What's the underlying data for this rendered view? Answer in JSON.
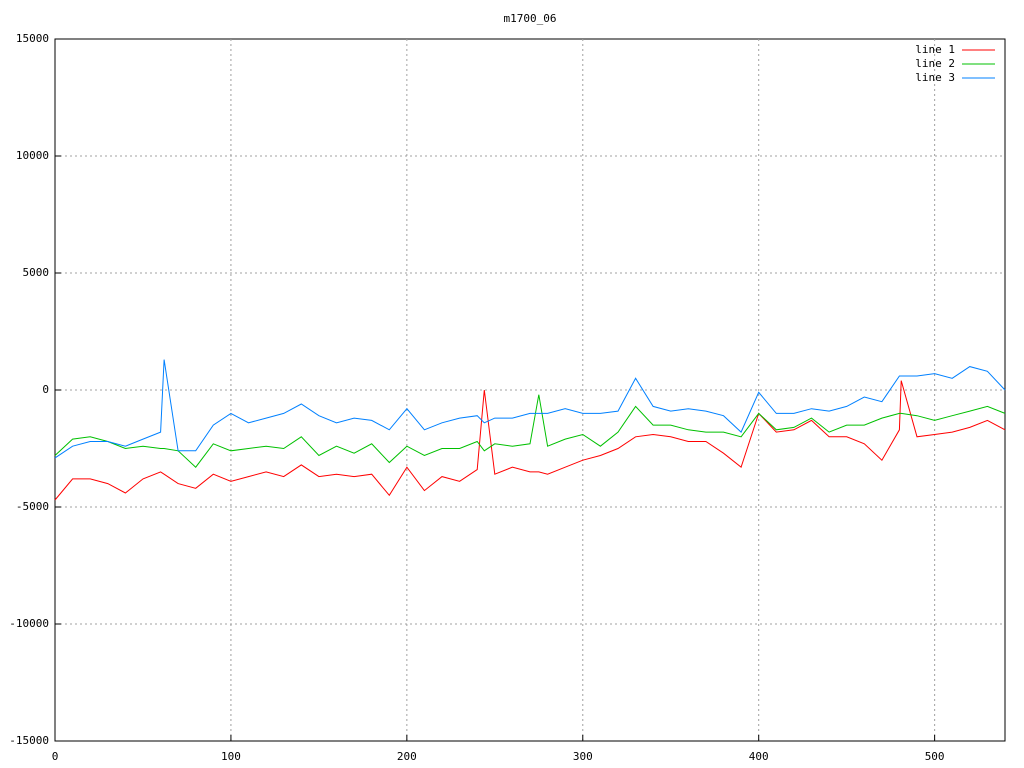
{
  "chart_data": {
    "type": "line",
    "title": "m1700_06",
    "x": [
      0,
      10,
      20,
      30,
      40,
      50,
      60,
      62,
      70,
      80,
      90,
      100,
      110,
      120,
      130,
      140,
      150,
      160,
      170,
      180,
      190,
      200,
      210,
      220,
      230,
      240,
      244,
      250,
      260,
      270,
      275,
      280,
      290,
      300,
      310,
      320,
      330,
      340,
      350,
      360,
      370,
      380,
      390,
      400,
      410,
      420,
      430,
      440,
      450,
      460,
      470,
      480,
      481,
      490,
      500,
      510,
      520,
      530,
      540
    ],
    "series": [
      {
        "name": "line 1",
        "color": "#ff0000",
        "values": [
          -4700,
          -3800,
          -3800,
          -4000,
          -4400,
          -3800,
          -3500,
          -3600,
          -4000,
          -4200,
          -3600,
          -3900,
          -3700,
          -3500,
          -3700,
          -3200,
          -3700,
          -3600,
          -3700,
          -3600,
          -4500,
          -3300,
          -4300,
          -3700,
          -3900,
          -3400,
          0,
          -3600,
          -3300,
          -3500,
          -3500,
          -3600,
          -3300,
          -3000,
          -2800,
          -2500,
          -2000,
          -1900,
          -2000,
          -2200,
          -2200,
          -2700,
          -3300,
          -1000,
          -1800,
          -1700,
          -1300,
          -2000,
          -2000,
          -2300,
          -3000,
          -1700,
          400,
          -2000,
          -1900,
          -1800,
          -1600,
          -1300,
          -1700
        ]
      },
      {
        "name": "line 2",
        "color": "#00c000",
        "values": [
          -2800,
          -2100,
          -2000,
          -2200,
          -2500,
          -2400,
          -2500,
          -2500,
          -2600,
          -3300,
          -2300,
          -2600,
          -2500,
          -2400,
          -2500,
          -2000,
          -2800,
          -2400,
          -2700,
          -2300,
          -3100,
          -2400,
          -2800,
          -2500,
          -2500,
          -2200,
          -2600,
          -2300,
          -2400,
          -2300,
          -200,
          -2400,
          -2100,
          -1900,
          -2400,
          -1800,
          -700,
          -1500,
          -1500,
          -1700,
          -1800,
          -1800,
          -2000,
          -1000,
          -1700,
          -1600,
          -1200,
          -1800,
          -1500,
          -1500,
          -1200,
          -1000,
          -1000,
          -1100,
          -1300,
          -1100,
          -900,
          -700,
          -1000
        ]
      },
      {
        "name": "line 3",
        "color": "#0080ff",
        "values": [
          -2900,
          -2400,
          -2200,
          -2200,
          -2400,
          -2100,
          -1800,
          1300,
          -2600,
          -2600,
          -1500,
          -1000,
          -1400,
          -1200,
          -1000,
          -600,
          -1100,
          -1400,
          -1200,
          -1300,
          -1700,
          -800,
          -1700,
          -1400,
          -1200,
          -1100,
          -1400,
          -1200,
          -1200,
          -1000,
          -1000,
          -1000,
          -800,
          -1000,
          -1000,
          -900,
          500,
          -700,
          -900,
          -800,
          -900,
          -1100,
          -1800,
          -100,
          -1000,
          -1000,
          -800,
          -900,
          -700,
          -300,
          -500,
          600,
          600,
          600,
          700,
          500,
          1000,
          800,
          0
        ]
      }
    ],
    "xlim": [
      0,
      540
    ],
    "xticks": [
      0,
      100,
      200,
      300,
      400,
      500
    ],
    "ylim": [
      -15000,
      15000
    ],
    "yticks": [
      -15000,
      -10000,
      -5000,
      0,
      5000,
      10000,
      15000
    ],
    "grid": true,
    "legend": "top-right"
  }
}
